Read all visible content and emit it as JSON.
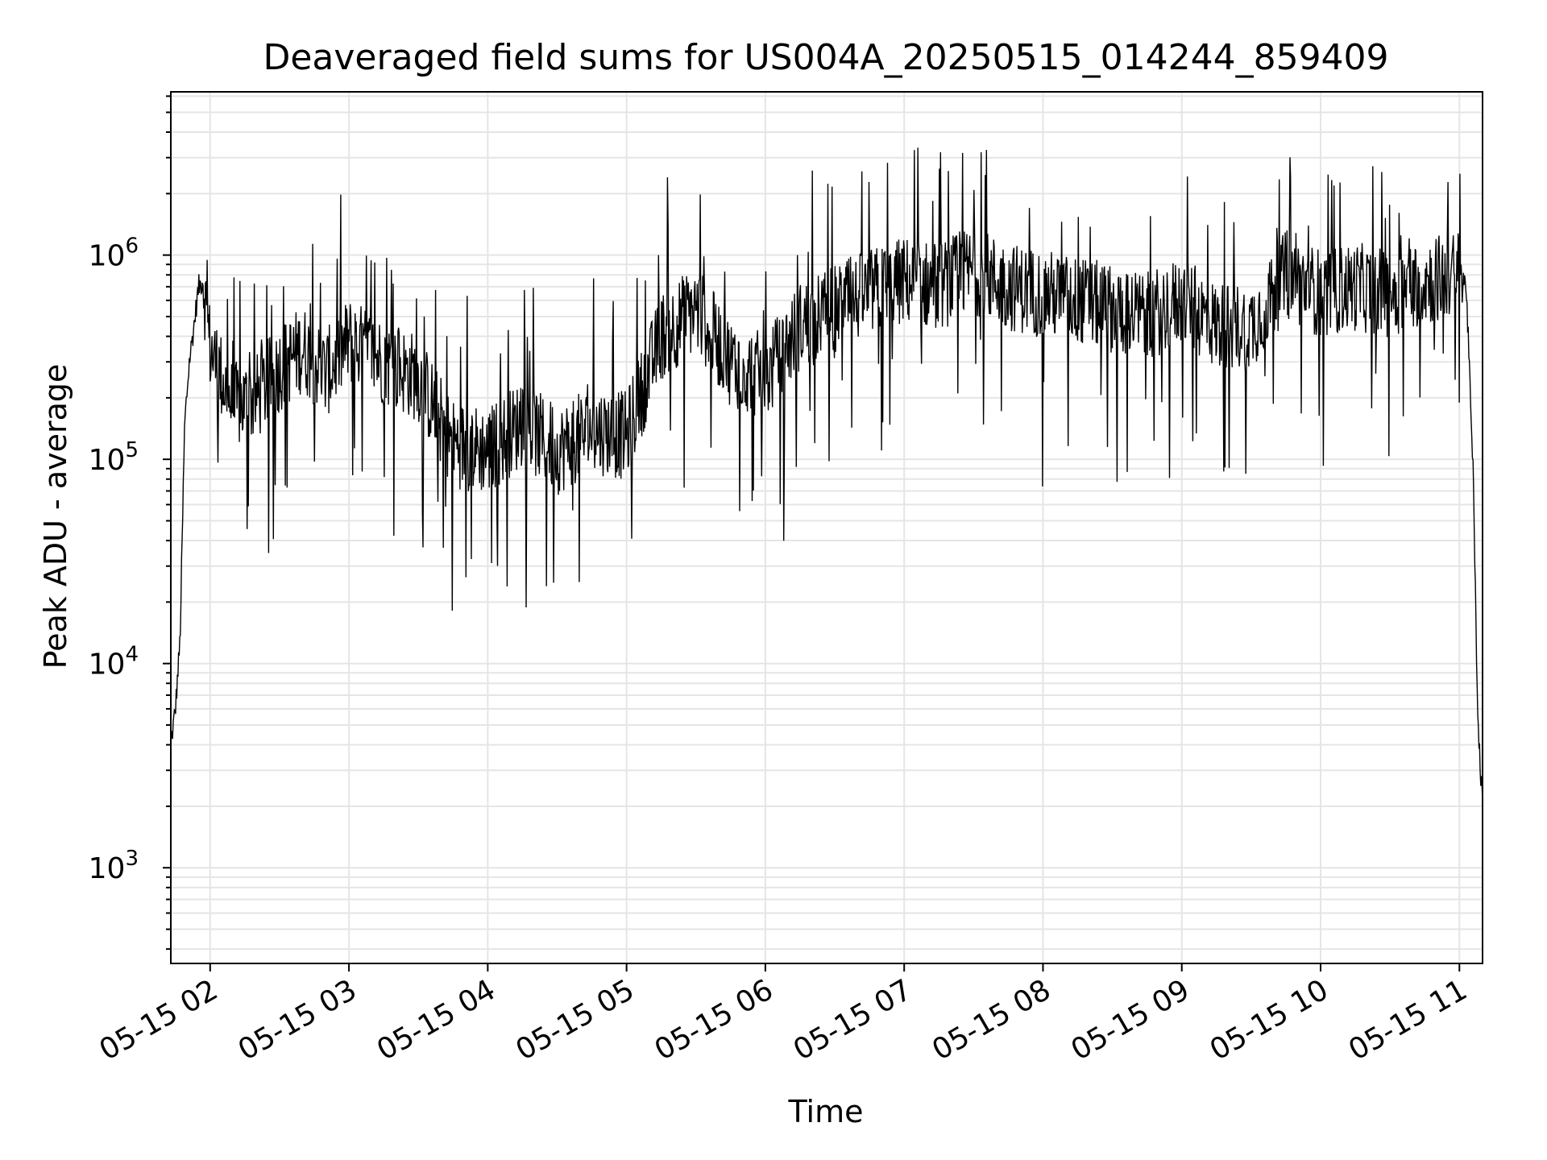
{
  "chart_data": {
    "type": "line",
    "title": "Deaveraged field sums for US004A_20250515_014244_859409",
    "xlabel": "Time",
    "ylabel": "Peak ADU - average",
    "yscale": "log",
    "ylim": [
      340,
      6300000
    ],
    "xlim": [
      "05-15 01:43",
      "05-15 11:10"
    ],
    "grid": true,
    "line_color": "#000000",
    "grid_color": "#e5e5e5",
    "x_ticks": [
      "05-15 02",
      "05-15 03",
      "05-15 04",
      "05-15 05",
      "05-15 06",
      "05-15 07",
      "05-15 08",
      "05-15 09",
      "05-15 10",
      "05-15 11"
    ],
    "y_ticks": [
      {
        "base": "10",
        "exp": "3",
        "value": 1000
      },
      {
        "base": "10",
        "exp": "4",
        "value": 10000
      },
      {
        "base": "10",
        "exp": "5",
        "value": 100000
      },
      {
        "base": "10",
        "exp": "6",
        "value": 1000000
      }
    ],
    "series": [
      {
        "x": [
          "05-15 01:43",
          "05-15 01:45",
          "05-15 01:47",
          "05-15 01:49",
          "05-15 01:51",
          "05-15 01:53",
          "05-15 01:55",
          "05-15 01:57",
          "05-15 02:00",
          "05-15 02:10",
          "05-15 02:20",
          "05-15 02:30",
          "05-15 02:40",
          "05-15 02:50",
          "05-15 03:00",
          "05-15 03:15",
          "05-15 03:30",
          "05-15 03:45",
          "05-15 04:00",
          "05-15 04:15",
          "05-15 04:30",
          "05-15 04:45",
          "05-15 05:00",
          "05-15 05:15",
          "05-15 05:30",
          "05-15 05:45",
          "05-15 06:00",
          "05-15 06:15",
          "05-15 06:30",
          "05-15 06:45",
          "05-15 07:00",
          "05-15 07:15",
          "05-15 07:30",
          "05-15 07:45",
          "05-15 08:00",
          "05-15 08:15",
          "05-15 08:30",
          "05-15 08:45",
          "05-15 09:00",
          "05-15 09:15",
          "05-15 09:30",
          "05-15 09:45",
          "05-15 10:00",
          "05-15 10:15",
          "05-15 10:30",
          "05-15 10:45",
          "05-15 11:00",
          "05-15 11:03",
          "05-15 11:06",
          "05-15 11:08",
          "05-15 11:10"
        ],
        "y": [
          4000,
          6000,
          13000,
          150000,
          300000,
          450000,
          700000,
          750000,
          350000,
          180000,
          200000,
          280000,
          350000,
          260000,
          380000,
          300000,
          250000,
          120000,
          110000,
          150000,
          110000,
          140000,
          130000,
          400000,
          550000,
          300000,
          250000,
          450000,
          550000,
          650000,
          750000,
          700000,
          850000,
          700000,
          650000,
          600000,
          550000,
          500000,
          600000,
          450000,
          450000,
          800000,
          650000,
          700000,
          650000,
          750000,
          800000,
          700000,
          80000,
          5000,
          2000
        ]
      }
    ]
  }
}
